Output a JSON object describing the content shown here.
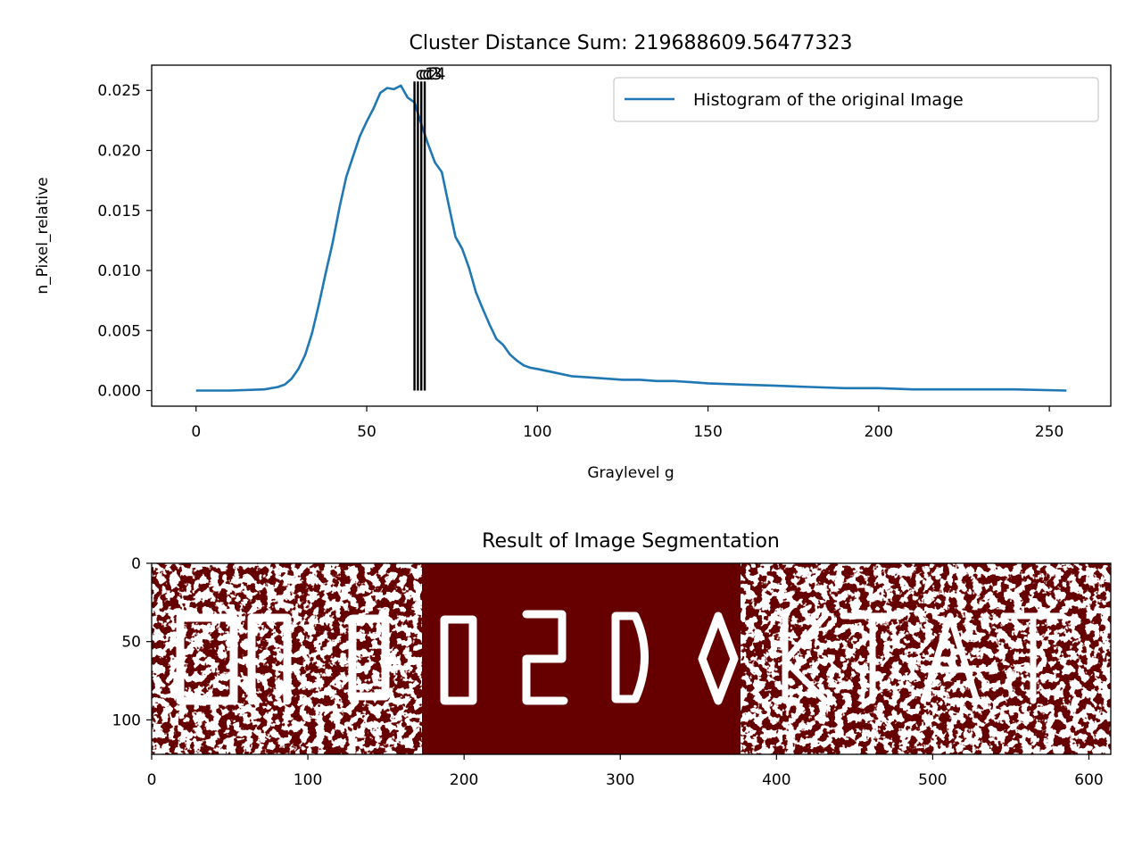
{
  "chart_data": [
    {
      "type": "line",
      "title": "Cluster Distance Sum: 219688609.56477323",
      "xlabel": "Graylevel g",
      "ylabel": "n_Pixel_relative",
      "xlim": [
        -13,
        268
      ],
      "ylim": [
        -0.0013,
        0.0271
      ],
      "xticks": [
        0,
        50,
        100,
        150,
        200,
        250
      ],
      "xtick_labels": [
        "0",
        "50",
        "100",
        "150",
        "200",
        "250"
      ],
      "yticks": [
        0.0,
        0.005,
        0.01,
        0.015,
        0.02,
        0.025
      ],
      "ytick_labels": [
        "0.000",
        "0.005",
        "0.010",
        "0.015",
        "0.020",
        "0.025"
      ],
      "legend": {
        "position": "upper right",
        "entries": [
          "Histogram of the original Image"
        ]
      },
      "series_color": "#1f77b4",
      "series": [
        {
          "name": "Histogram of the original Image",
          "x": [
            0,
            10,
            20,
            24,
            26,
            28,
            30,
            32,
            34,
            36,
            38,
            40,
            42,
            44,
            46,
            48,
            50,
            52,
            54,
            56,
            58,
            60,
            62,
            64,
            66,
            68,
            70,
            72,
            74,
            76,
            78,
            80,
            82,
            84,
            86,
            88,
            90,
            92,
            94,
            96,
            98,
            100,
            105,
            110,
            115,
            120,
            125,
            130,
            135,
            140,
            145,
            150,
            160,
            170,
            180,
            190,
            200,
            210,
            220,
            230,
            240,
            255
          ],
          "y": [
            0.0,
            0.0,
            0.0001,
            0.0003,
            0.0005,
            0.001,
            0.0018,
            0.003,
            0.0048,
            0.0072,
            0.0098,
            0.0123,
            0.0152,
            0.0178,
            0.0195,
            0.0212,
            0.0224,
            0.0235,
            0.0248,
            0.0252,
            0.0251,
            0.0254,
            0.0244,
            0.024,
            0.0222,
            0.0205,
            0.019,
            0.0182,
            0.0155,
            0.0128,
            0.0118,
            0.0102,
            0.0082,
            0.0068,
            0.0055,
            0.0043,
            0.0038,
            0.003,
            0.0025,
            0.0021,
            0.0019,
            0.0018,
            0.0015,
            0.0012,
            0.0011,
            0.001,
            0.0009,
            0.0009,
            0.0008,
            0.0008,
            0.0007,
            0.0006,
            0.0005,
            0.0004,
            0.0003,
            0.0002,
            0.0002,
            0.0001,
            0.0001,
            0.0001,
            0.0001,
            0.0
          ]
        }
      ],
      "cluster_markers": {
        "x": [
          64,
          65,
          66,
          67
        ],
        "labels": [
          "c1",
          "c2",
          "c3",
          "c4"
        ],
        "color": "#000000"
      }
    },
    {
      "type": "heatmap",
      "title": "Result of Image Segmentation",
      "xlim": [
        0,
        614
      ],
      "ylim": [
        122,
        0
      ],
      "xticks": [
        0,
        100,
        200,
        300,
        400,
        500,
        600
      ],
      "xtick_labels": [
        "0",
        "100",
        "200",
        "300",
        "400",
        "500",
        "600"
      ],
      "yticks": [
        0,
        50,
        100
      ],
      "ytick_labels": [
        "0",
        "50",
        "100"
      ],
      "colors": {
        "foreground": "#ffffff",
        "background": "#660000"
      }
    }
  ]
}
